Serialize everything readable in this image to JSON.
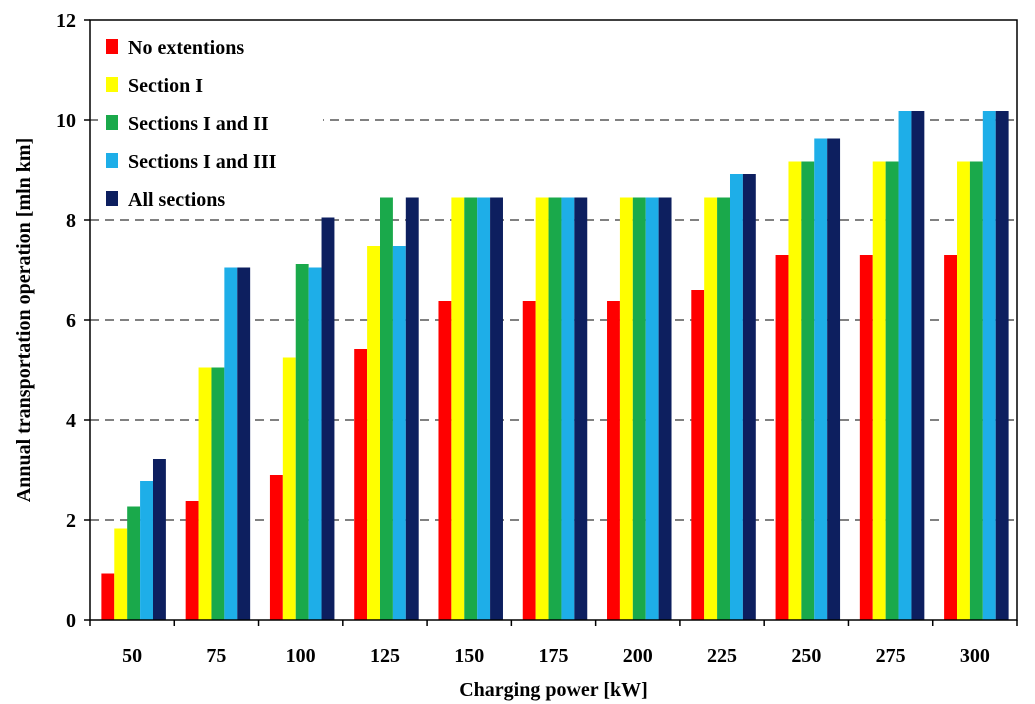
{
  "chart_data": {
    "type": "bar",
    "title": "",
    "xlabel": "Charging power [kW]",
    "ylabel": "Annual transportation operation [mln km]",
    "ylim": [
      0,
      12
    ],
    "yticks": [
      0,
      2,
      4,
      6,
      8,
      10,
      12
    ],
    "grid": "horizontal dashed",
    "legend_position": "top-left",
    "categories": [
      "50",
      "75",
      "100",
      "125",
      "150",
      "175",
      "200",
      "225",
      "250",
      "275",
      "300"
    ],
    "series": [
      {
        "name": "No extentions",
        "color": "#ff0000",
        "values": [
          0.93,
          2.38,
          2.9,
          5.42,
          6.38,
          6.38,
          6.38,
          6.6,
          7.3,
          7.3,
          7.3
        ]
      },
      {
        "name": "Section I",
        "color": "#ffff00",
        "values": [
          1.83,
          5.05,
          5.25,
          7.48,
          8.45,
          8.45,
          8.45,
          8.45,
          9.17,
          9.17,
          9.17
        ]
      },
      {
        "name": "Sections I and II",
        "color": "#1aa94b",
        "values": [
          2.27,
          5.05,
          7.12,
          8.45,
          8.45,
          8.45,
          8.45,
          8.45,
          9.17,
          9.17,
          9.17
        ]
      },
      {
        "name": "Sections I and III",
        "color": "#1eaee8",
        "values": [
          2.78,
          7.05,
          7.05,
          7.48,
          8.45,
          8.45,
          8.45,
          8.92,
          9.63,
          10.18,
          10.18
        ]
      },
      {
        "name": "All sections",
        "color": "#0d1f5f",
        "values": [
          3.22,
          7.05,
          8.05,
          8.45,
          8.45,
          8.45,
          8.45,
          8.92,
          9.63,
          10.18,
          10.18
        ]
      }
    ]
  }
}
